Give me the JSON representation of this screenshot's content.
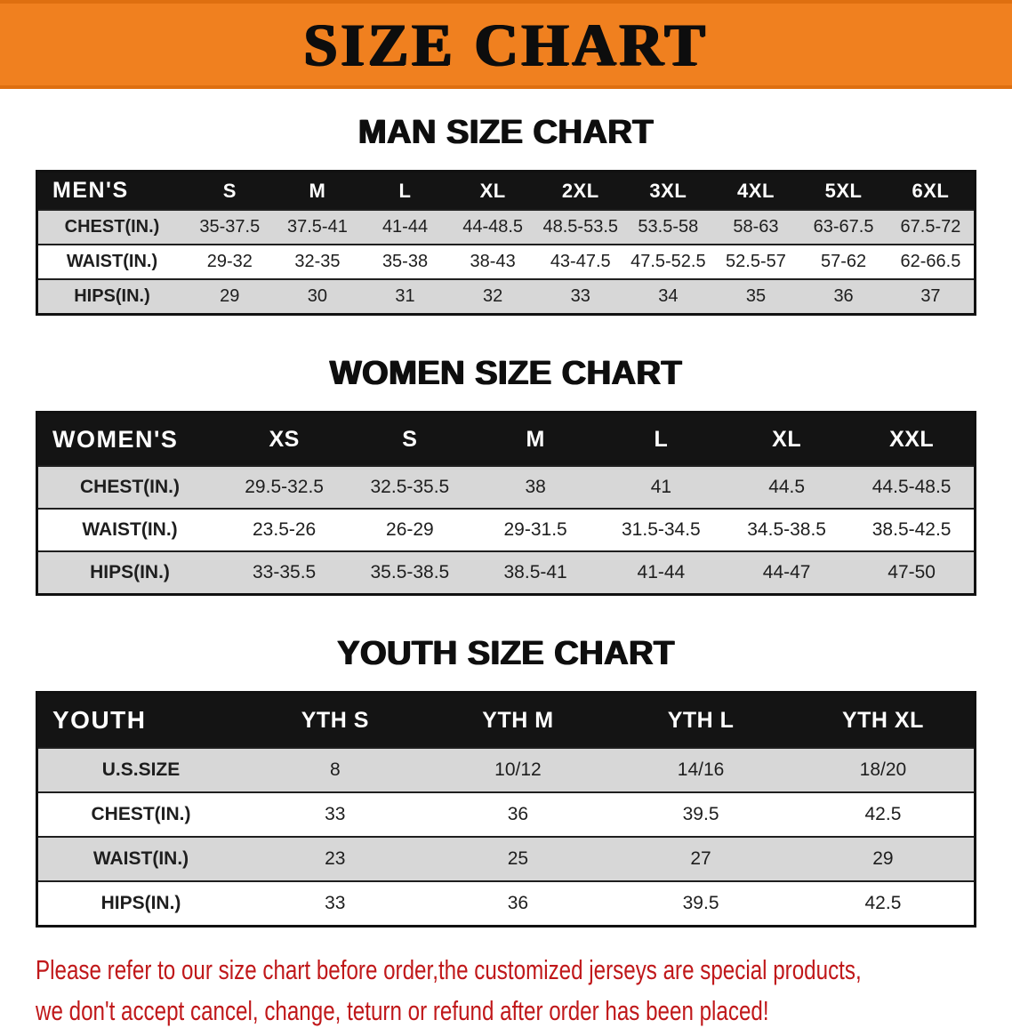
{
  "banner": {
    "title": "SIZE CHART"
  },
  "colors": {
    "banner_bg": "#f0801f",
    "banner_edge": "#de6f10",
    "header_bg": "#141414",
    "row_gray": "#d7d7d7",
    "disclaimer_red": "#c0181a"
  },
  "sections": [
    {
      "heading": "MAN SIZE CHART",
      "table": {
        "header": [
          "MEN'S",
          "S",
          "M",
          "L",
          "XL",
          "2XL",
          "3XL",
          "4XL",
          "5XL",
          "6XL"
        ],
        "rows": [
          [
            "CHEST(IN.)",
            "35-37.5",
            "37.5-41",
            "41-44",
            "44-48.5",
            "48.5-53.5",
            "53.5-58",
            "58-63",
            "63-67.5",
            "67.5-72"
          ],
          [
            "WAIST(IN.)",
            "29-32",
            "32-35",
            "35-38",
            "38-43",
            "43-47.5",
            "47.5-52.5",
            "52.5-57",
            "57-62",
            "62-66.5"
          ],
          [
            "HIPS(IN.)",
            "29",
            "30",
            "31",
            "32",
            "33",
            "34",
            "35",
            "36",
            "37"
          ]
        ]
      }
    },
    {
      "heading": "WOMEN SIZE CHART",
      "table": {
        "header": [
          "WOMEN'S",
          "XS",
          "S",
          "M",
          "L",
          "XL",
          "XXL"
        ],
        "rows": [
          [
            "CHEST(IN.)",
            "29.5-32.5",
            "32.5-35.5",
            "38",
            "41",
            "44.5",
            "44.5-48.5"
          ],
          [
            "WAIST(IN.)",
            "23.5-26",
            "26-29",
            "29-31.5",
            "31.5-34.5",
            "34.5-38.5",
            "38.5-42.5"
          ],
          [
            "HIPS(IN.)",
            "33-35.5",
            "35.5-38.5",
            "38.5-41",
            "41-44",
            "44-47",
            "47-50"
          ]
        ]
      }
    },
    {
      "heading": "YOUTH SIZE CHART",
      "table": {
        "header": [
          "YOUTH",
          "YTH S",
          "YTH M",
          "YTH L",
          "YTH XL"
        ],
        "rows": [
          [
            "U.S.SIZE",
            "8",
            "10/12",
            "14/16",
            "18/20"
          ],
          [
            "CHEST(IN.)",
            "33",
            "36",
            "39.5",
            "42.5"
          ],
          [
            "WAIST(IN.)",
            "23",
            "25",
            "27",
            "29"
          ],
          [
            "HIPS(IN.)",
            "33",
            "36",
            "39.5",
            "42.5"
          ]
        ]
      }
    }
  ],
  "disclaimer": {
    "line1": "Please refer to our size chart before order,the customized jerseys are special products,",
    "line2": "we don't accept cancel, change, teturn or refund after order has been placed!"
  }
}
